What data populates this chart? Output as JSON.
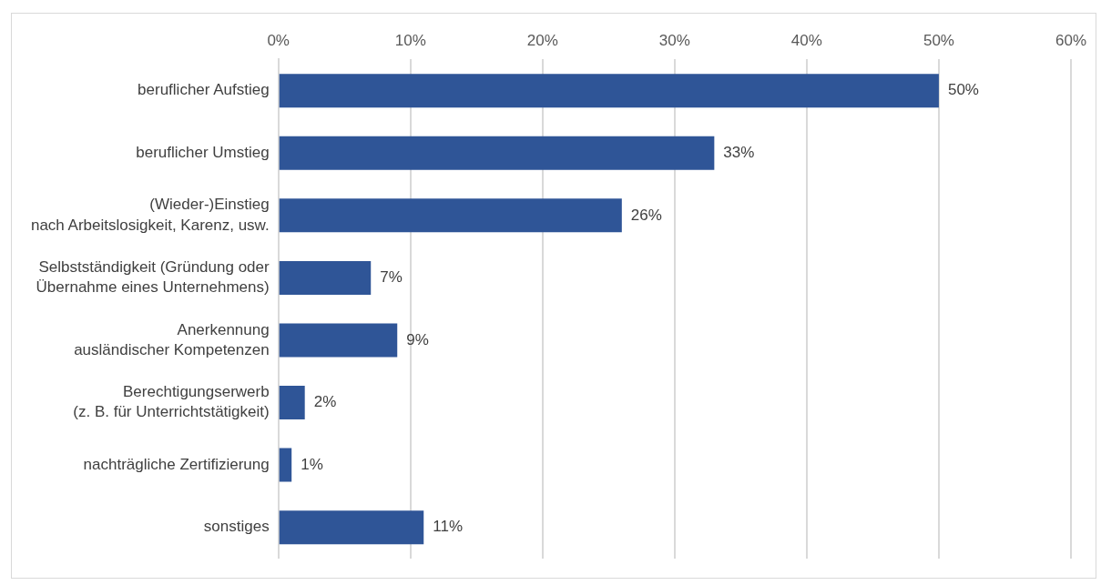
{
  "chart_data": {
    "type": "bar",
    "orientation": "horizontal",
    "categories": [
      "beruflicher Aufstieg",
      "beruflicher Umstieg",
      "(Wieder-)Einstieg\nnach Arbeitslosigkeit, Karenz, usw.",
      "Selbstständigkeit (Gründung oder\nÜbernahme eines Unternehmens)",
      "Anerkennung\nausländischer Kompetenzen",
      "Berechtigungserwerb\n(z. B. für Unterrichtstätigkeit)",
      "nachträgliche Zertifizierung",
      "sonstiges"
    ],
    "values": [
      50,
      33,
      26,
      7,
      9,
      2,
      1,
      11
    ],
    "value_labels": [
      "50%",
      "33%",
      "26%",
      "7%",
      "9%",
      "2%",
      "1%",
      "11%"
    ],
    "color": "#2f5597",
    "xlim": [
      0,
      60
    ],
    "xticks": [
      {
        "value": 0,
        "label": "0%"
      },
      {
        "value": 10,
        "label": "10%"
      },
      {
        "value": 20,
        "label": "20%"
      },
      {
        "value": 30,
        "label": "30%"
      },
      {
        "value": 40,
        "label": "40%"
      },
      {
        "value": 50,
        "label": "50%"
      },
      {
        "value": 60,
        "label": "60%"
      }
    ],
    "grid": "x",
    "legend": false
  }
}
